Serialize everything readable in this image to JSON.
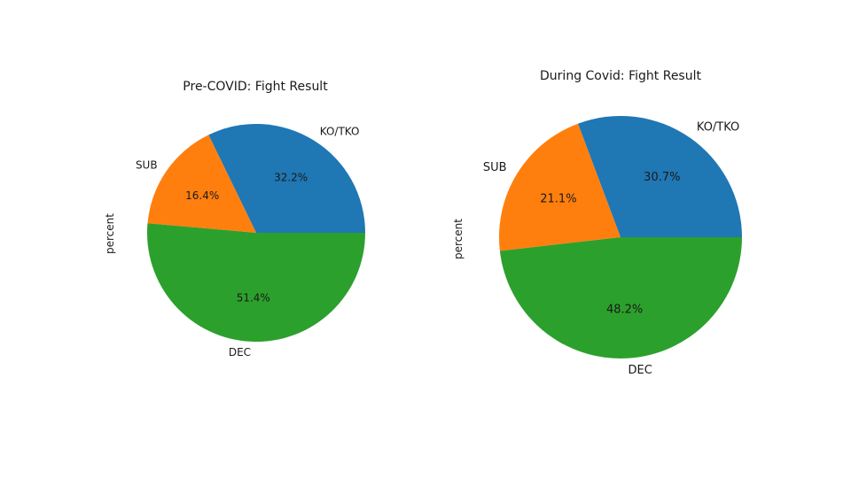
{
  "chart_data": [
    {
      "type": "pie",
      "title": "Pre-COVID: Fight Result",
      "ylabel": "percent",
      "categories": [
        "KO/TKO",
        "SUB",
        "DEC"
      ],
      "values": [
        32.2,
        16.4,
        51.4
      ],
      "value_labels": [
        "32.2%",
        "16.4%",
        "51.4%"
      ],
      "colors": [
        "#1f77b4",
        "#ff7f0e",
        "#2ca02c"
      ],
      "start_angle_deg": 0,
      "direction": "counterclockwise",
      "legend": "none"
    },
    {
      "type": "pie",
      "title": "During Covid: Fight Result",
      "ylabel": "percent",
      "categories": [
        "KO/TKO",
        "SUB",
        "DEC"
      ],
      "values": [
        30.7,
        21.1,
        48.2
      ],
      "value_labels": [
        "30.7%",
        "21.1%",
        "48.2%"
      ],
      "colors": [
        "#1f77b4",
        "#ff7f0e",
        "#2ca02c"
      ],
      "start_angle_deg": 0,
      "direction": "counterclockwise",
      "legend": "none"
    }
  ]
}
